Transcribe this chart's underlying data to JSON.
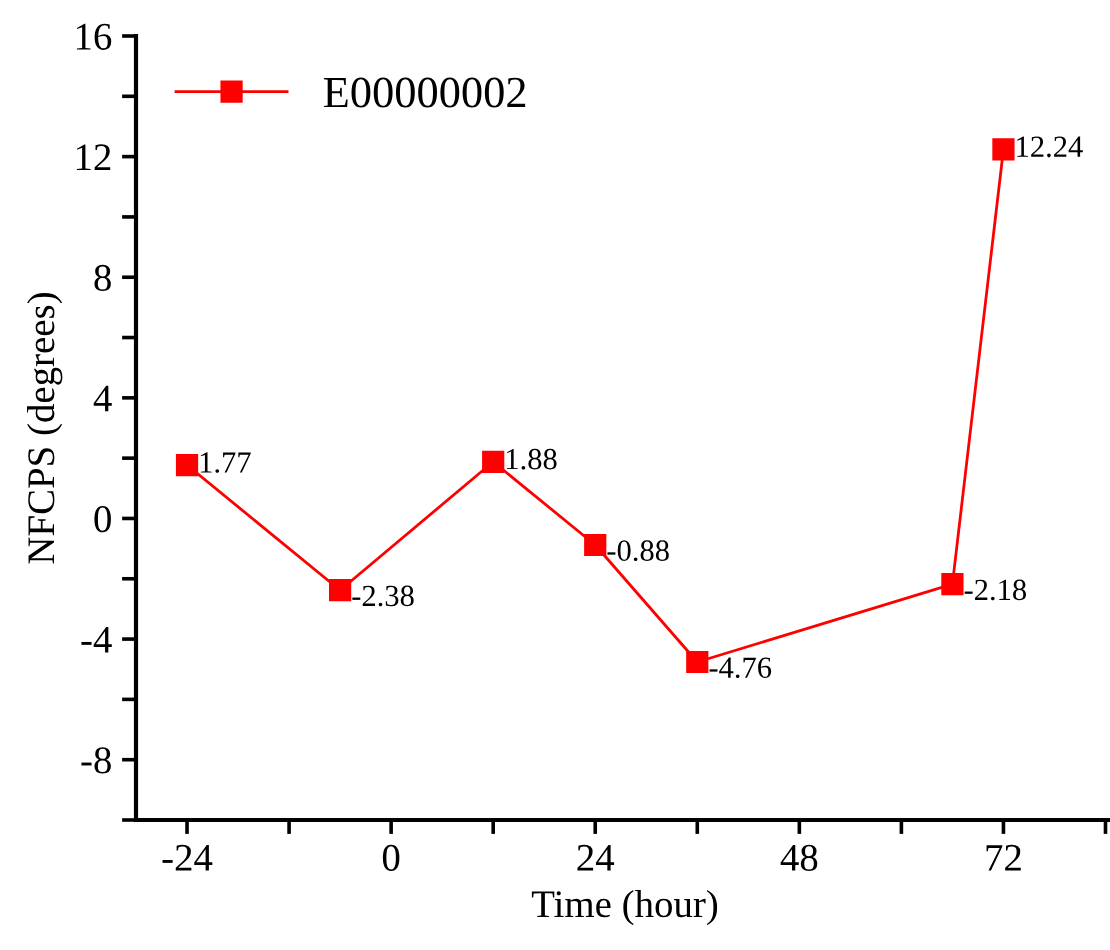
{
  "chart_data": {
    "type": "line",
    "xlabel": "Time (hour)",
    "ylabel": "NFCPS (degrees)",
    "x": [
      -24,
      -6,
      12,
      24,
      36,
      66,
      72
    ],
    "series": [
      {
        "name": "E00000002",
        "color": "#ff0000",
        "values": [
          1.77,
          -2.38,
          1.88,
          -0.88,
          -4.76,
          -2.18,
          12.24
        ]
      }
    ],
    "xlim": [
      -30,
      85
    ],
    "xticks": [
      -24,
      {
        "value": -12,
        "label": null
      },
      0,
      {
        "value": 12,
        "label": null
      },
      24,
      {
        "value": 36,
        "label": null
      },
      48,
      {
        "value": 60,
        "label": null
      },
      72,
      {
        "value": 84,
        "label": null
      }
    ],
    "ylim": [
      -10,
      16
    ],
    "yticks": [
      {
        "value": -10,
        "label": null
      },
      -8,
      {
        "value": -6,
        "label": null
      },
      -4,
      {
        "value": -2,
        "label": null
      },
      0,
      {
        "value": 2,
        "label": null
      },
      4,
      {
        "value": 6,
        "label": null
      },
      8,
      {
        "value": 10,
        "label": null
      },
      12,
      {
        "value": 14,
        "label": null
      },
      16
    ],
    "data_labels": true,
    "legend": "top left",
    "grid": false,
    "marker": "square",
    "line_style": "solid"
  }
}
